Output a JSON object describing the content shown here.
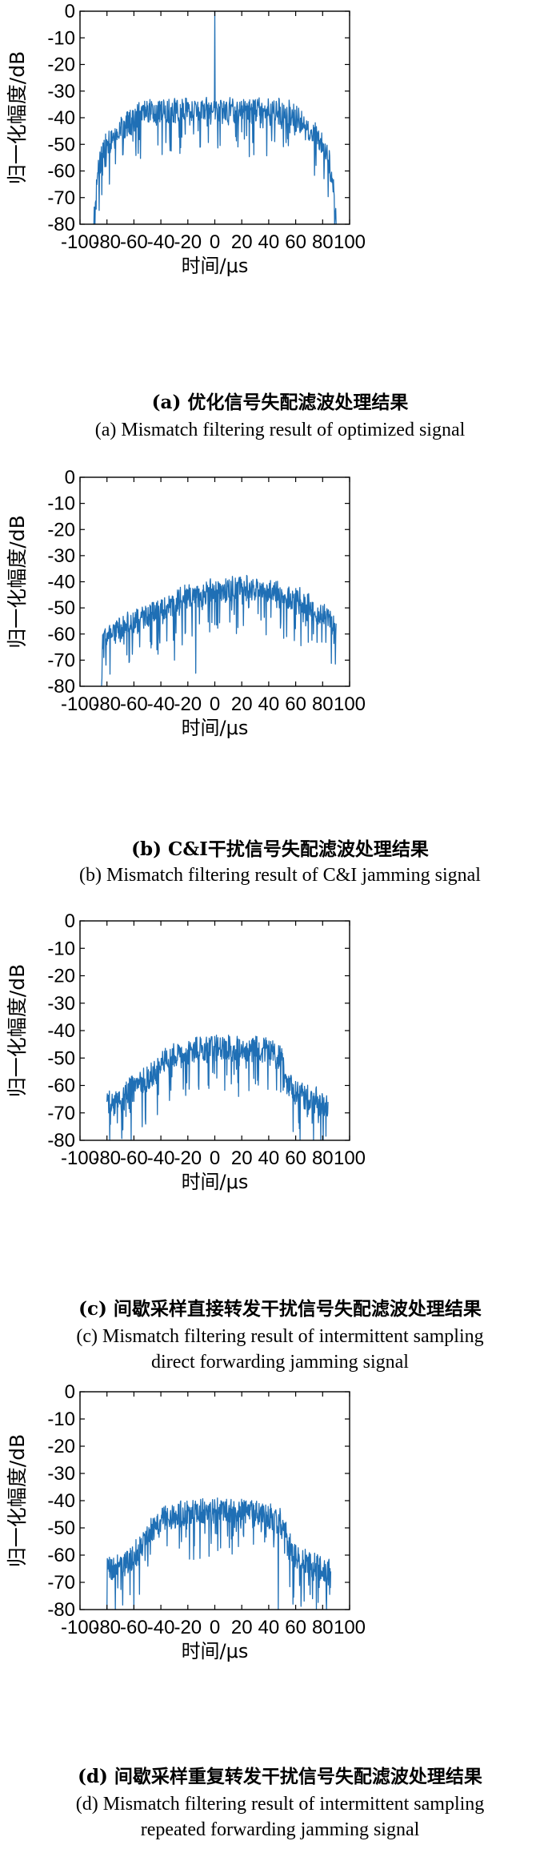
{
  "chart_data": [
    {
      "id": "a",
      "type": "line",
      "series_color": "#1f6fb5",
      "xlabel": "时间/μs",
      "ylabel": "归一化幅度/dB",
      "xlim": [
        -100,
        100
      ],
      "ylim": [
        -80,
        0
      ],
      "xticks": [
        "-100",
        "-80",
        "-60",
        "-40",
        "-20",
        "0",
        "20",
        "40",
        "60",
        "80",
        "100"
      ],
      "yticks": [
        "0",
        "-10",
        "-20",
        "-30",
        "-40",
        "-50",
        "-60",
        "-70",
        "-80"
      ],
      "grid": false,
      "caption_cn": "(a) 优化信号失配滤波处理结果",
      "caption_en": "(a) Mismatch filtering result of optimized signal",
      "caption_en2": "",
      "x_range": [
        -90,
        90
      ],
      "envelope": {
        "x": [
          -90,
          -88,
          -85,
          -80,
          -70,
          -60,
          -55,
          -50,
          -40,
          -20,
          0,
          20,
          40,
          50,
          55,
          60,
          70,
          80,
          85,
          88,
          90
        ],
        "y": [
          -80,
          -64,
          -56,
          -49,
          -44,
          -40,
          -38,
          -37.5,
          -37,
          -37,
          -37,
          -37,
          -37,
          -37.5,
          -38,
          -40,
          -44,
          -49,
          -56,
          -64,
          -80
        ]
      },
      "spikes": [
        {
          "x": 0,
          "y": 0
        }
      ]
    },
    {
      "id": "b",
      "type": "line",
      "series_color": "#1f6fb5",
      "xlabel": "时间/μs",
      "ylabel": "归一化幅度/dB",
      "xlim": [
        -100,
        100
      ],
      "ylim": [
        -80,
        0
      ],
      "xticks": [
        "-100",
        "-80",
        "-60",
        "-40",
        "-20",
        "0",
        "20",
        "40",
        "60",
        "80",
        "100"
      ],
      "yticks": [
        "0",
        "-10",
        "-20",
        "-30",
        "-40",
        "-50",
        "-60",
        "-70",
        "-80"
      ],
      "grid": false,
      "caption_cn": "(b) C&I干扰信号失配滤波处理结果",
      "caption_en": "(b) Mismatch filtering result of C&I jamming signal",
      "caption_en2": "",
      "x_range": [
        -84,
        90
      ],
      "envelope": {
        "x": [
          -84,
          -80,
          -60,
          -40,
          -20,
          0,
          20,
          40,
          60,
          80,
          90
        ],
        "y": [
          -62,
          -60,
          -55,
          -50,
          -45,
          -43,
          -42,
          -43,
          -46,
          -52,
          -56
        ]
      },
      "spikes": [
        {
          "x": -84,
          "y": -80
        },
        {
          "x": -14,
          "y": -75
        },
        {
          "x": -30,
          "y": -70
        }
      ]
    },
    {
      "id": "c",
      "type": "line",
      "series_color": "#1f6fb5",
      "xlabel": "时间/μs",
      "ylabel": "归一化幅度/dB",
      "xlim": [
        -100,
        100
      ],
      "ylim": [
        -80,
        0
      ],
      "xticks": [
        "-100",
        "-80",
        "-60",
        "-40",
        "-20",
        "0",
        "20",
        "40",
        "60",
        "80",
        "100"
      ],
      "yticks": [
        "0",
        "-10",
        "-20",
        "-30",
        "-40",
        "-50",
        "-60",
        "-70",
        "-80"
      ],
      "grid": false,
      "caption_cn": "(c) 间歇采样直接转发干扰信号失配滤波处理结果",
      "caption_en": "(c) Mismatch filtering result of intermittent sampling",
      "caption_en2": "direct  forwarding jamming signal",
      "x_range": [
        -80,
        84
      ],
      "envelope": {
        "x": [
          -80,
          -70,
          -60,
          -50,
          -40,
          -30,
          -20,
          0,
          20,
          40,
          50,
          52,
          60,
          70,
          84
        ],
        "y": [
          -66,
          -65,
          -60,
          -57,
          -52,
          -49,
          -47,
          -46,
          -46,
          -47,
          -50,
          -58,
          -62,
          -64,
          -66
        ]
      },
      "spikes": [
        {
          "x": -78,
          "y": -80
        },
        {
          "x": -62,
          "y": -80
        }
      ]
    },
    {
      "id": "d",
      "type": "line",
      "series_color": "#1f6fb5",
      "xlabel": "时间/μs",
      "ylabel": "归一化幅度/dB",
      "xlim": [
        -100,
        100
      ],
      "ylim": [
        -80,
        0
      ],
      "xticks": [
        "-100",
        "-80",
        "-60",
        "-40",
        "-20",
        "0",
        "20",
        "40",
        "60",
        "80",
        "100"
      ],
      "yticks": [
        "0",
        "-10",
        "-20",
        "-30",
        "-40",
        "-50",
        "-60",
        "-70",
        "-80"
      ],
      "grid": false,
      "caption_cn": "(d) 间歇采样重复转发干扰信号失配滤波处理结果",
      "caption_en": "(d) Mismatch filtering result of intermittent sampling",
      "caption_en2": "repeated forwarding jamming signal",
      "x_range": [
        -80,
        86
      ],
      "envelope": {
        "x": [
          -80,
          -70,
          -60,
          -55,
          -50,
          -40,
          -20,
          0,
          20,
          40,
          50,
          55,
          60,
          70,
          86
        ],
        "y": [
          -65,
          -64,
          -60,
          -56,
          -52,
          -47,
          -44,
          -43,
          -43,
          -45,
          -48,
          -55,
          -60,
          -63,
          -66
        ]
      },
      "spikes": [
        {
          "x": -80,
          "y": -80
        },
        {
          "x": -60,
          "y": -80
        },
        {
          "x": 47,
          "y": -80
        },
        {
          "x": 58,
          "y": -78
        }
      ]
    }
  ]
}
